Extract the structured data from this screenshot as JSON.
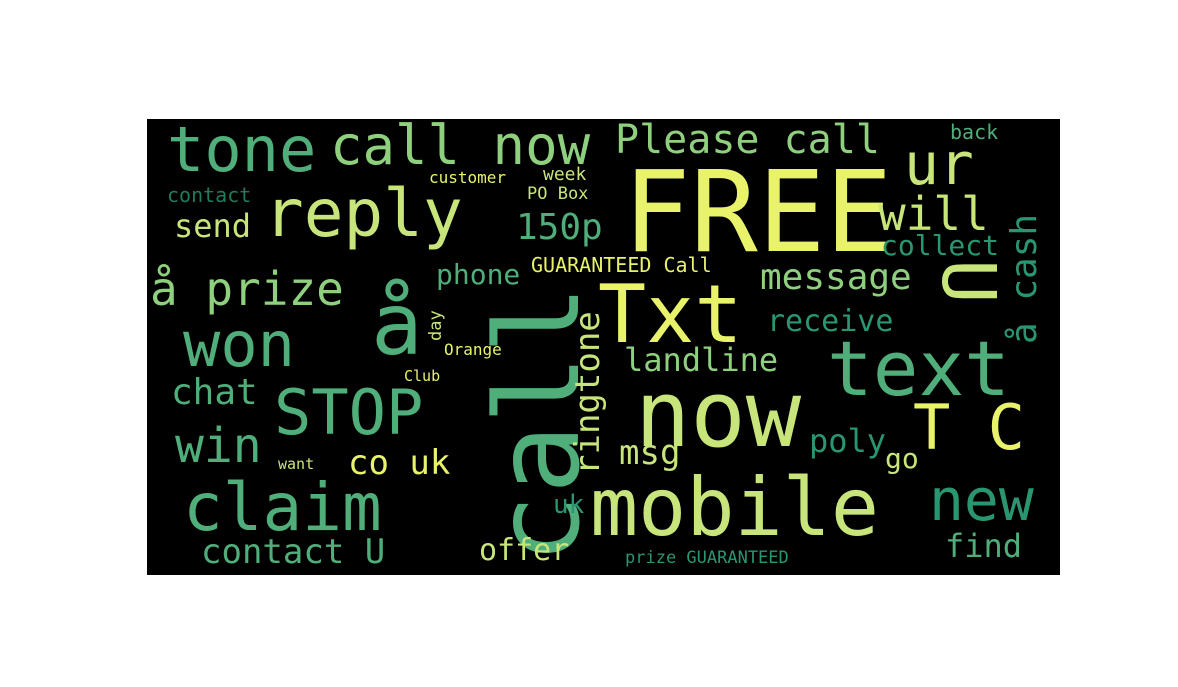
{
  "palette": {
    "yellow": "#e8f26a",
    "lime": "#c7e57a",
    "green": "#8fd07e",
    "sea": "#4fae7a",
    "teal": "#2a9670",
    "deep": "#1f7a5e"
  },
  "words": [
    {
      "text": "FREE",
      "color": "yellow"
    },
    {
      "text": "call",
      "color": "sea"
    },
    {
      "text": "now",
      "color": "lime"
    },
    {
      "text": "mobile",
      "color": "lime"
    },
    {
      "text": "Txt",
      "color": "yellow"
    },
    {
      "text": "text",
      "color": "sea"
    },
    {
      "text": "reply",
      "color": "lime"
    },
    {
      "text": "claim",
      "color": "sea"
    },
    {
      "text": "U",
      "color": "lime"
    },
    {
      "text": "tone",
      "color": "sea"
    },
    {
      "text": "call now",
      "color": "green"
    },
    {
      "text": "won",
      "color": "sea"
    },
    {
      "text": "STOP",
      "color": "sea"
    },
    {
      "text": "å",
      "color": "sea"
    },
    {
      "text": "ur",
      "color": "lime"
    },
    {
      "text": "T C",
      "color": "yellow"
    },
    {
      "text": "new",
      "color": "teal"
    },
    {
      "text": "Please call",
      "color": "green"
    },
    {
      "text": "win",
      "color": "sea"
    },
    {
      "text": "å prize",
      "color": "green"
    },
    {
      "text": "will",
      "color": "lime"
    },
    {
      "text": "å cash",
      "color": "teal"
    },
    {
      "text": "150p",
      "color": "sea"
    },
    {
      "text": "message",
      "color": "green"
    },
    {
      "text": "ringtone",
      "color": "lime"
    },
    {
      "text": "contact U",
      "color": "sea"
    },
    {
      "text": "chat",
      "color": "sea"
    },
    {
      "text": "co uk",
      "color": "yellow"
    },
    {
      "text": "landline",
      "color": "green"
    },
    {
      "text": "receive",
      "color": "teal"
    },
    {
      "text": "msg",
      "color": "lime"
    },
    {
      "text": "poly",
      "color": "teal"
    },
    {
      "text": "send",
      "color": "lime"
    },
    {
      "text": "collect",
      "color": "teal"
    },
    {
      "text": "find",
      "color": "sea"
    },
    {
      "text": "offer",
      "color": "lime"
    },
    {
      "text": "phone",
      "color": "sea"
    },
    {
      "text": "go",
      "color": "lime"
    },
    {
      "text": "uk",
      "color": "teal"
    },
    {
      "text": "GUARANTEED Call",
      "color": "yellow"
    },
    {
      "text": "contact",
      "color": "deep"
    },
    {
      "text": "back",
      "color": "sea"
    },
    {
      "text": "week",
      "color": "lime"
    },
    {
      "text": "customer",
      "color": "yellow"
    },
    {
      "text": "PO Box",
      "color": "lime"
    },
    {
      "text": "day",
      "color": "lime"
    },
    {
      "text": "Orange",
      "color": "yellow"
    },
    {
      "text": "Club",
      "color": "yellow"
    },
    {
      "text": "want",
      "color": "lime"
    },
    {
      "text": "prize GUARANTEED",
      "color": "teal"
    }
  ]
}
